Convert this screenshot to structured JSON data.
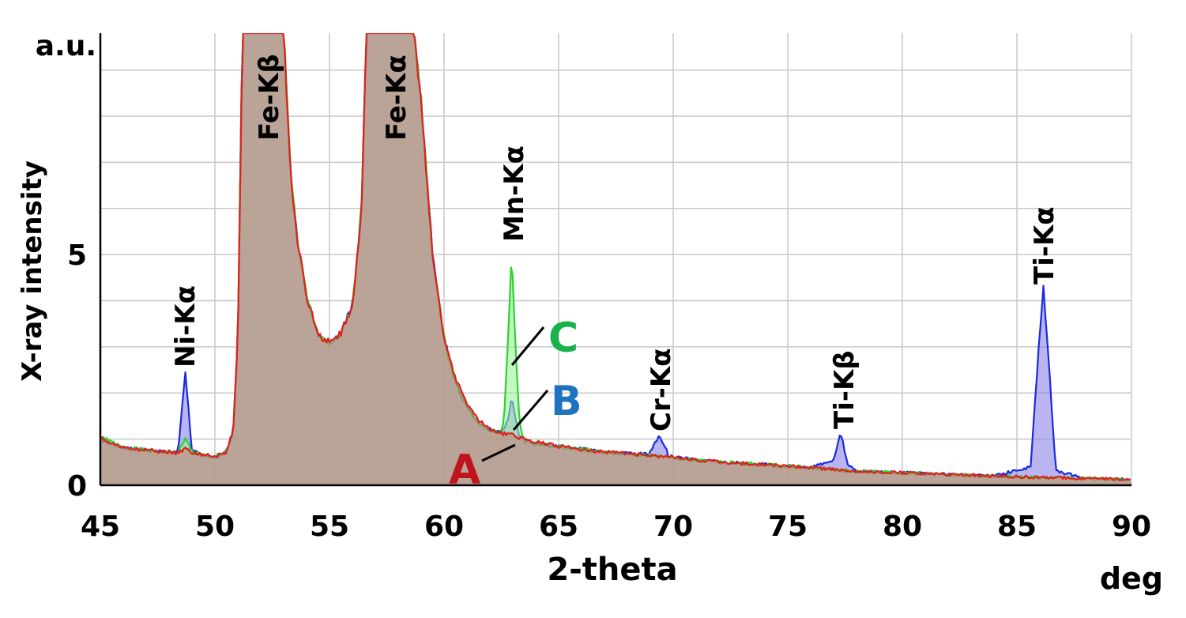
{
  "chart_data": {
    "type": "area",
    "xlabel": "2-theta",
    "x_unit": "deg",
    "ylabel": "X-ray intensity",
    "y_unit": "a.u.",
    "xlim": [
      45,
      90
    ],
    "ylim": [
      0,
      9.8
    ],
    "x_ticks": [
      45,
      50,
      55,
      60,
      65,
      70,
      75,
      80,
      85,
      90
    ],
    "y_ticks": [
      0,
      5
    ],
    "grid": true,
    "x_minor_grid_step": 5,
    "y_minor_grid_step": 1,
    "peaks": [
      {
        "label": "Ni-Kα",
        "x": 48.7
      },
      {
        "label": "Fe-Kβ",
        "x": 52.1
      },
      {
        "label": "Fe-Kα",
        "x": 57.6
      },
      {
        "label": "Mn-Kα",
        "x": 63.0
      },
      {
        "label": "Cr-Kα",
        "x": 69.4
      },
      {
        "label": "Ti-Kβ",
        "x": 77.3
      },
      {
        "label": "Ti-Kα",
        "x": 86.1
      }
    ],
    "series": [
      {
        "name": "A",
        "color": "#e0201c",
        "fill": "#c87878",
        "x": [
          45,
          46,
          47,
          48,
          48.4,
          48.7,
          49.0,
          49.5,
          50,
          50.5,
          50.8,
          51.0,
          51.2,
          51.5,
          53.0,
          53.3,
          53.6,
          54.0,
          54.5,
          55.0,
          55.5,
          56.0,
          56.4,
          56.6,
          58.7,
          59.0,
          59.5,
          60.0,
          60.5,
          61.0,
          61.5,
          62.0,
          62.5,
          63.0,
          63.5,
          64.0,
          65.0,
          66.0,
          67.0,
          68.0,
          69.0,
          70.0,
          72.0,
          74.0,
          76.0,
          78.0,
          80.0,
          82.0,
          84.0,
          86.0,
          88.0,
          90.0
        ],
        "y": [
          1.03,
          0.8,
          0.76,
          0.72,
          0.7,
          0.78,
          0.7,
          0.66,
          0.62,
          0.72,
          1.2,
          3.2,
          9.8,
          9.8,
          9.8,
          6.8,
          5.3,
          4.1,
          3.25,
          3.1,
          3.3,
          3.9,
          6.0,
          9.8,
          9.8,
          8.3,
          5.0,
          3.2,
          2.3,
          1.75,
          1.4,
          1.22,
          1.12,
          1.08,
          1.0,
          0.93,
          0.85,
          0.78,
          0.72,
          0.68,
          0.64,
          0.6,
          0.5,
          0.45,
          0.38,
          0.3,
          0.27,
          0.23,
          0.2,
          0.17,
          0.15,
          0.12
        ]
      },
      {
        "name": "B",
        "color": "#1a2be0",
        "fill": "#8c82e6",
        "x": [
          45,
          46,
          47,
          48,
          48.4,
          48.55,
          48.7,
          48.85,
          49.0,
          49.5,
          50,
          50.5,
          50.8,
          51.0,
          51.2,
          51.5,
          53.0,
          53.3,
          53.6,
          54.0,
          54.5,
          55.0,
          55.5,
          56.0,
          56.4,
          56.6,
          58.7,
          59.0,
          59.5,
          60.0,
          60.5,
          61.0,
          61.5,
          62.0,
          62.5,
          62.8,
          62.95,
          63.1,
          63.3,
          63.5,
          64.0,
          65.0,
          66.0,
          67.0,
          68.0,
          69.0,
          69.25,
          69.4,
          69.55,
          69.8,
          70.0,
          72.0,
          74.0,
          76.0,
          77.0,
          77.2,
          77.3,
          77.4,
          77.6,
          78.0,
          80.0,
          82.0,
          84.0,
          85.6,
          85.9,
          86.15,
          86.4,
          86.7,
          88.0,
          90.0
        ],
        "y": [
          1.0,
          0.8,
          0.76,
          0.72,
          0.72,
          1.6,
          2.5,
          1.6,
          0.75,
          0.66,
          0.6,
          0.72,
          1.2,
          3.2,
          9.8,
          9.8,
          9.8,
          6.8,
          5.3,
          4.1,
          3.25,
          3.05,
          3.3,
          3.9,
          6.0,
          9.8,
          9.8,
          8.3,
          5.0,
          3.2,
          2.2,
          1.7,
          1.35,
          1.2,
          1.12,
          1.4,
          1.9,
          1.45,
          1.05,
          0.95,
          0.9,
          0.84,
          0.78,
          0.72,
          0.68,
          0.7,
          0.95,
          1.08,
          0.95,
          0.65,
          0.6,
          0.5,
          0.45,
          0.38,
          0.55,
          0.95,
          1.15,
          0.95,
          0.45,
          0.3,
          0.27,
          0.23,
          0.2,
          0.4,
          2.6,
          4.35,
          2.6,
          0.3,
          0.15,
          0.12
        ]
      },
      {
        "name": "C",
        "color": "#2ad42a",
        "fill": "#9ef29e",
        "x": [
          45,
          46,
          47,
          48,
          48.4,
          48.6,
          48.75,
          48.9,
          49.0,
          49.5,
          50,
          50.5,
          50.8,
          51.0,
          51.2,
          51.5,
          53.0,
          53.3,
          53.6,
          54.0,
          54.5,
          55.0,
          55.5,
          56.0,
          56.4,
          56.6,
          58.7,
          59.0,
          59.5,
          60.0,
          60.5,
          61.0,
          61.5,
          62.0,
          62.4,
          62.6,
          62.8,
          62.95,
          63.1,
          63.3,
          63.5,
          64.0,
          65.0,
          66.0,
          67.0,
          68.0,
          69.0,
          70.0,
          72.0,
          74.0,
          76.0,
          78.0,
          80.0,
          82.0,
          84.0,
          86.0,
          88.0,
          90.0
        ],
        "y": [
          1.05,
          0.82,
          0.76,
          0.72,
          0.72,
          0.9,
          1.02,
          0.85,
          0.72,
          0.66,
          0.62,
          0.72,
          1.2,
          3.2,
          9.8,
          9.8,
          9.8,
          6.8,
          5.3,
          4.1,
          3.25,
          3.1,
          3.3,
          3.9,
          6.0,
          9.8,
          9.8,
          8.3,
          5.0,
          3.2,
          2.2,
          1.7,
          1.35,
          1.2,
          1.12,
          1.3,
          3.2,
          5.0,
          3.2,
          1.3,
          0.98,
          0.9,
          0.84,
          0.78,
          0.72,
          0.68,
          0.64,
          0.6,
          0.5,
          0.45,
          0.38,
          0.3,
          0.27,
          0.23,
          0.2,
          0.17,
          0.15,
          0.12
        ]
      }
    ]
  }
}
